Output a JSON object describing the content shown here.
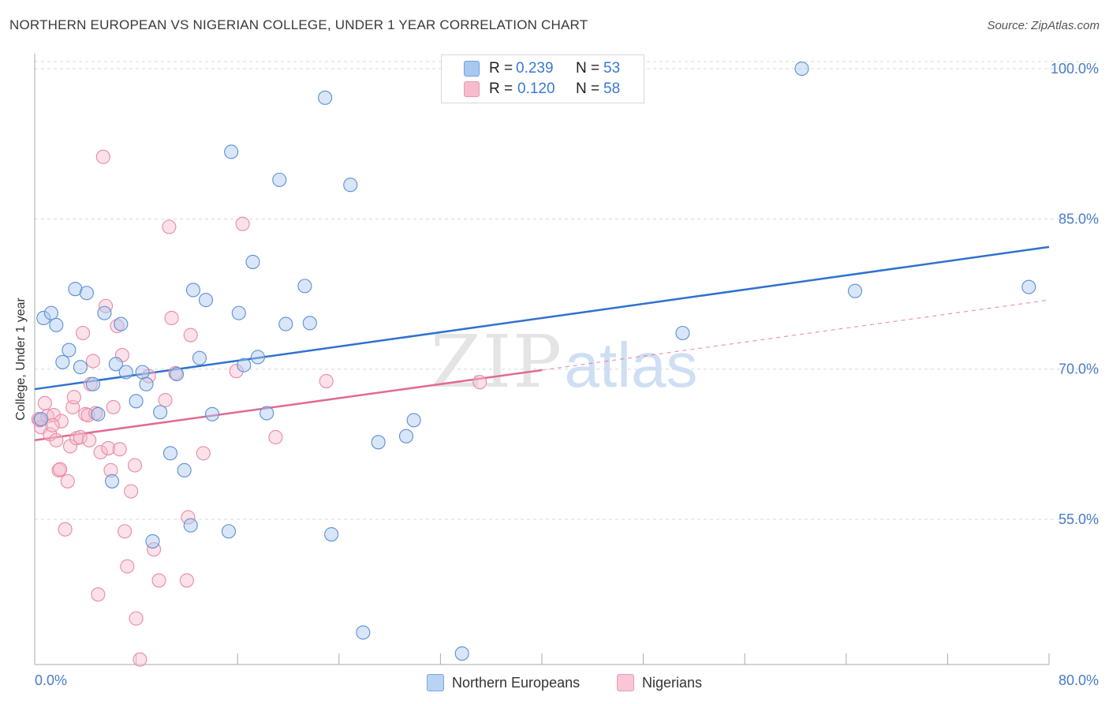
{
  "header": {
    "title": "NORTHERN EUROPEAN VS NIGERIAN COLLEGE, UNDER 1 YEAR CORRELATION CHART",
    "source": "Source: ZipAtlas.com"
  },
  "watermark": {
    "zip": "ZIP",
    "atlas": "atlas"
  },
  "legend": {
    "rows": [
      {
        "r_label": "R =",
        "r_value": "0.239",
        "n_label": "N =",
        "n_value": "53",
        "color": "#a9c8f0"
      },
      {
        "r_label": "R =",
        "r_value": "0.120",
        "n_label": "N =",
        "n_value": "58",
        "color": "#f6bccd"
      }
    ]
  },
  "bottom_legend": {
    "items": [
      {
        "label": "Northern Europeans",
        "color": "#b9d3f3"
      },
      {
        "label": "Nigerians",
        "color": "#f8c6d4"
      }
    ]
  },
  "chart_data": {
    "type": "scatter",
    "title": "NORTHERN EUROPEAN VS NIGERIAN COLLEGE, UNDER 1 YEAR CORRELATION CHART",
    "xlabel": "",
    "ylabel": "College, Under 1 year",
    "xlim": [
      0,
      80
    ],
    "ylim": [
      40.5,
      101.5
    ],
    "x_tick_labels": [
      "0.0%",
      "80.0%"
    ],
    "y_ticks": [
      55,
      70,
      85,
      100
    ],
    "y_tick_labels": [
      "55.0%",
      "70.0%",
      "85.0%",
      "100.0%"
    ],
    "grid": true,
    "legend_position": "top-center",
    "colors": {
      "blue_fill": "#a9c8f0",
      "blue_stroke": "#5b8fd6",
      "blue_line": "#2f72cc",
      "pink_fill": "#f6bccd",
      "pink_stroke": "#e88aa6",
      "pink_line": "#e06a93",
      "grid": "#d8d8d8",
      "axis": "#aaaaaa"
    },
    "series": [
      {
        "name": "Northern Europeans",
        "points": [
          [
            0.7,
            75.1
          ],
          [
            1.3,
            75.6
          ],
          [
            1.7,
            74.4
          ],
          [
            2.2,
            70.7
          ],
          [
            2.7,
            71.9
          ],
          [
            3.2,
            78.0
          ],
          [
            3.6,
            70.2
          ],
          [
            4.1,
            77.6
          ],
          [
            4.6,
            68.5
          ],
          [
            5.0,
            65.5
          ],
          [
            5.5,
            75.6
          ],
          [
            6.1,
            58.8
          ],
          [
            6.4,
            70.5
          ],
          [
            6.8,
            74.5
          ],
          [
            7.2,
            69.7
          ],
          [
            8.0,
            66.8
          ],
          [
            8.5,
            69.7
          ],
          [
            8.8,
            68.5
          ],
          [
            9.3,
            52.8
          ],
          [
            9.9,
            65.7
          ],
          [
            10.7,
            61.6
          ],
          [
            11.2,
            69.5
          ],
          [
            11.8,
            59.9
          ],
          [
            12.3,
            54.4
          ],
          [
            12.5,
            77.9
          ],
          [
            13.0,
            71.1
          ],
          [
            13.5,
            76.9
          ],
          [
            14.0,
            65.5
          ],
          [
            15.3,
            53.8
          ],
          [
            15.5,
            91.7
          ],
          [
            16.1,
            75.6
          ],
          [
            16.5,
            70.4
          ],
          [
            17.2,
            80.7
          ],
          [
            17.6,
            71.2
          ],
          [
            18.3,
            65.6
          ],
          [
            19.3,
            88.9
          ],
          [
            19.8,
            74.5
          ],
          [
            21.3,
            78.3
          ],
          [
            21.7,
            74.6
          ],
          [
            22.9,
            97.1
          ],
          [
            23.4,
            53.5
          ],
          [
            24.9,
            88.4
          ],
          [
            25.9,
            43.7
          ],
          [
            27.1,
            62.7
          ],
          [
            29.3,
            63.3
          ],
          [
            29.9,
            64.9
          ],
          [
            33.7,
            41.6
          ],
          [
            40.4,
            100.0
          ],
          [
            60.5,
            100.0
          ],
          [
            51.1,
            73.6
          ],
          [
            64.7,
            77.8
          ],
          [
            78.4,
            78.2
          ],
          [
            0.5,
            65.0
          ]
        ],
        "trend": {
          "x": [
            0,
            80
          ],
          "y": [
            68.0,
            82.2
          ]
        }
      },
      {
        "name": "Nigerians",
        "points": [
          [
            0.3,
            65.0
          ],
          [
            0.5,
            64.2
          ],
          [
            0.8,
            66.6
          ],
          [
            1.0,
            65.3
          ],
          [
            1.2,
            63.5
          ],
          [
            1.5,
            65.4
          ],
          [
            1.7,
            62.9
          ],
          [
            1.9,
            59.9
          ],
          [
            2.1,
            64.8
          ],
          [
            2.4,
            54.0
          ],
          [
            2.6,
            58.8
          ],
          [
            2.8,
            62.3
          ],
          [
            3.0,
            66.2
          ],
          [
            3.1,
            67.2
          ],
          [
            3.3,
            63.1
          ],
          [
            3.6,
            63.2
          ],
          [
            3.8,
            73.6
          ],
          [
            4.0,
            65.5
          ],
          [
            4.2,
            65.4
          ],
          [
            4.4,
            68.5
          ],
          [
            4.6,
            70.8
          ],
          [
            4.8,
            65.6
          ],
          [
            5.0,
            47.5
          ],
          [
            5.2,
            61.7
          ],
          [
            5.4,
            91.2
          ],
          [
            5.6,
            76.3
          ],
          [
            5.8,
            62.1
          ],
          [
            6.0,
            59.9
          ],
          [
            6.2,
            66.2
          ],
          [
            6.5,
            74.3
          ],
          [
            6.7,
            62.0
          ],
          [
            6.9,
            71.4
          ],
          [
            7.1,
            53.8
          ],
          [
            7.3,
            50.3
          ],
          [
            7.6,
            57.8
          ],
          [
            7.9,
            60.4
          ],
          [
            8.0,
            45.1
          ],
          [
            8.3,
            41.0
          ],
          [
            9.0,
            69.3
          ],
          [
            9.4,
            52.0
          ],
          [
            9.8,
            48.9
          ],
          [
            10.3,
            66.9
          ],
          [
            10.6,
            84.2
          ],
          [
            10.8,
            75.1
          ],
          [
            11.1,
            69.6
          ],
          [
            12.0,
            48.9
          ],
          [
            12.1,
            55.2
          ],
          [
            12.3,
            73.4
          ],
          [
            13.3,
            61.6
          ],
          [
            15.9,
            69.8
          ],
          [
            16.4,
            84.5
          ],
          [
            19.0,
            63.2
          ],
          [
            23.0,
            68.8
          ],
          [
            35.1,
            68.7
          ],
          [
            0.4,
            64.9
          ],
          [
            1.4,
            64.4
          ],
          [
            4.3,
            62.9
          ],
          [
            2.0,
            60.0
          ]
        ],
        "trend_solid": {
          "x": [
            0,
            40
          ],
          "y": [
            62.9,
            69.9
          ]
        },
        "trend_dashed": {
          "x": [
            40,
            80
          ],
          "y": [
            69.9,
            76.9
          ]
        }
      }
    ]
  }
}
